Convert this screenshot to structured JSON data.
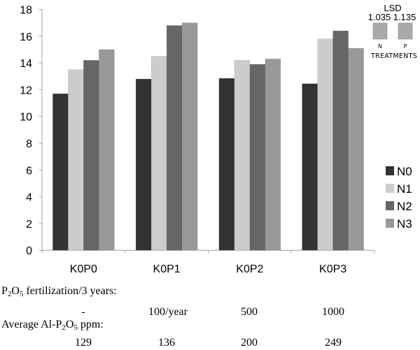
{
  "chart_data": {
    "type": "bar",
    "title": "",
    "xlabel": "",
    "ylabel": "",
    "ylim": [
      0,
      18
    ],
    "yticks": [
      0,
      2,
      4,
      6,
      8,
      10,
      12,
      14,
      16,
      18
    ],
    "grid": false,
    "legend_position": "right",
    "categories": [
      "K0P0",
      "K0P1",
      "K0P2",
      "K0P3"
    ],
    "series": [
      {
        "name": "N0",
        "color": "#333333",
        "values": [
          11.7,
          12.8,
          12.85,
          12.45
        ]
      },
      {
        "name": "N1",
        "color": "#cccccc",
        "values": [
          13.5,
          14.5,
          14.2,
          15.8
        ]
      },
      {
        "name": "N2",
        "color": "#666666",
        "values": [
          14.2,
          16.8,
          13.9,
          16.4
        ]
      },
      {
        "name": "N3",
        "color": "#999999",
        "values": [
          15.0,
          17.0,
          14.3,
          15.1
        ]
      }
    ],
    "lsd": {
      "title": "LSD",
      "caption": "TREATMENTS",
      "color": "#a9a9a9",
      "items": [
        {
          "label": "N",
          "value": "1.035"
        },
        {
          "label": "P",
          "value": "1.135"
        }
      ]
    }
  },
  "footer": {
    "fert_label_prefix": "P",
    "fert_label_sub1": "2",
    "fert_label_mid": "O",
    "fert_label_sub2": "5",
    "fert_label_suffix": " fertilization/3 years:",
    "fert_values": [
      "-",
      "100/year",
      "500",
      "1000"
    ],
    "al_label_prefix": "Average Al-P",
    "al_label_sub1": "2",
    "al_label_mid": "O",
    "al_label_sub2": "5",
    "al_label_suffix": " ppm:",
    "al_values": [
      "129",
      "136",
      "200",
      "249"
    ]
  }
}
